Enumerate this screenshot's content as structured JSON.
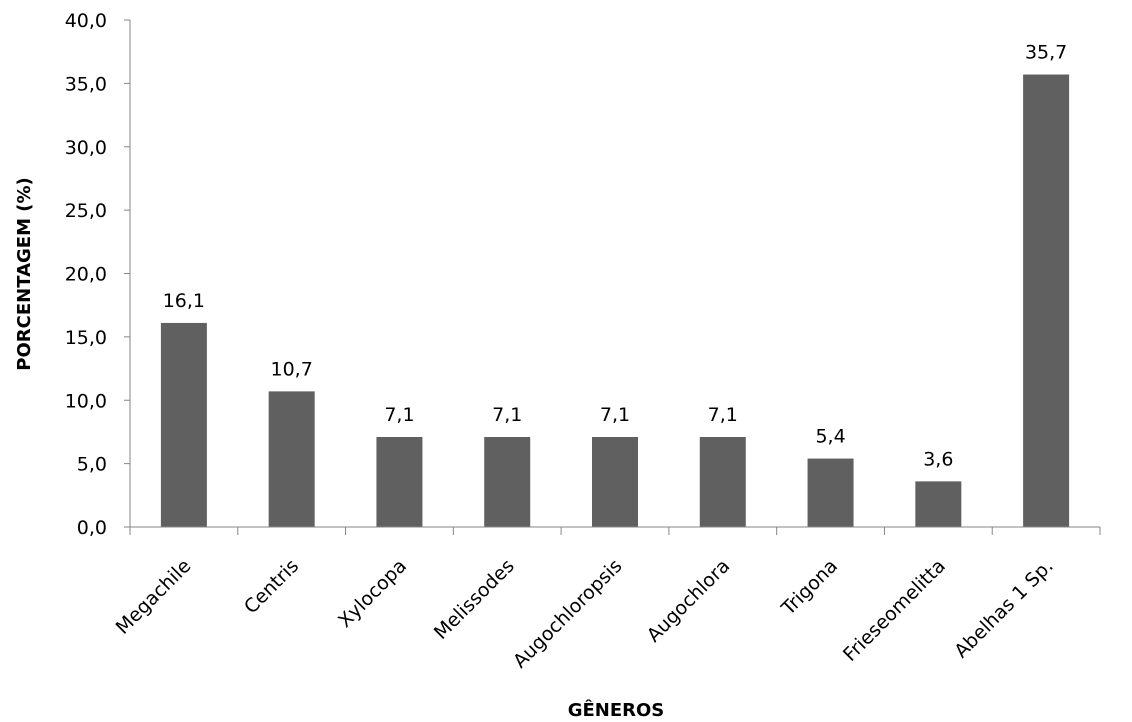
{
  "chart_data": {
    "type": "bar",
    "title": "",
    "xlabel": "GÊNEROS",
    "ylabel": "PORCENTAGEM (%)",
    "categories": [
      "Megachile",
      "Centris",
      "Xylocopa",
      "Melissodes",
      "Augochloropsis",
      "Augochlora",
      "Trigona",
      "Frieseomelitta",
      "Abelhas 1 Sp."
    ],
    "values": [
      16.1,
      10.7,
      7.1,
      7.1,
      7.1,
      7.1,
      5.4,
      3.6,
      35.7
    ],
    "data_labels": [
      "16,1",
      "10,7",
      "7,1",
      "7,1",
      "7,1",
      "7,1",
      "5,4",
      "3,6",
      "35,7"
    ],
    "ylim": [
      0,
      40
    ],
    "yticks": [
      0,
      5,
      10,
      15,
      20,
      25,
      30,
      35,
      40
    ],
    "ytick_labels": [
      "0,0",
      "5,0",
      "10,0",
      "15,0",
      "20,0",
      "25,0",
      "30,0",
      "35,0",
      "40,0"
    ],
    "grid": false,
    "legend": "none",
    "bar_color": "#606060",
    "axis_color": "#868686"
  }
}
